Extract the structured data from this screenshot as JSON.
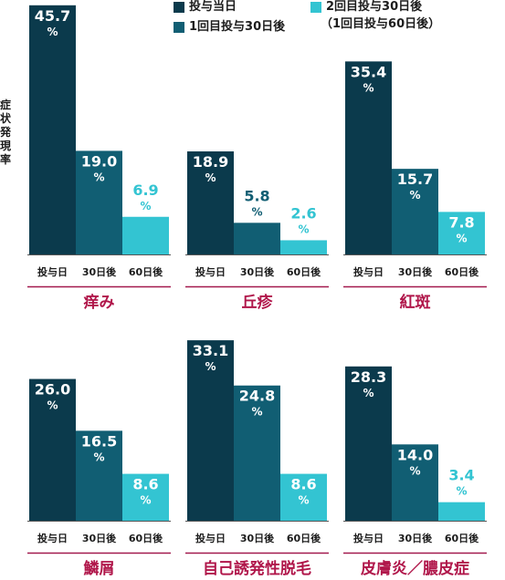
{
  "legend": {
    "day0": "投与当日",
    "day30": "1回目投与30日後",
    "day60": "2回目投与30日後",
    "day60_note": "（1回目投与60日後）"
  },
  "ylabel": "症状発現率",
  "colors": {
    "day0": "#0b3a4c",
    "day30": "#115e73",
    "day60": "#33c4d2",
    "category_line": "#a31a4e",
    "category_text": "#b0164a",
    "value_text_light": "#ffffff"
  },
  "chart_data": {
    "type": "bar",
    "unit": "%",
    "categories": [
      "投与日",
      "30日後",
      "60日後"
    ],
    "ylim": [
      0,
      46
    ],
    "panels": [
      {
        "title": "痒み",
        "values": [
          45.7,
          19.0,
          6.9
        ]
      },
      {
        "title": "丘疹",
        "values": [
          18.9,
          5.8,
          2.6
        ]
      },
      {
        "title": "紅斑",
        "values": [
          35.4,
          15.7,
          7.8
        ]
      },
      {
        "title": "鱗屑",
        "values": [
          26.0,
          16.5,
          8.6
        ]
      },
      {
        "title": "自己誘発性脱毛",
        "values": [
          33.1,
          24.8,
          8.6
        ]
      },
      {
        "title": "皮膚炎／膿皮症",
        "values": [
          28.3,
          14.0,
          3.4
        ]
      }
    ]
  }
}
